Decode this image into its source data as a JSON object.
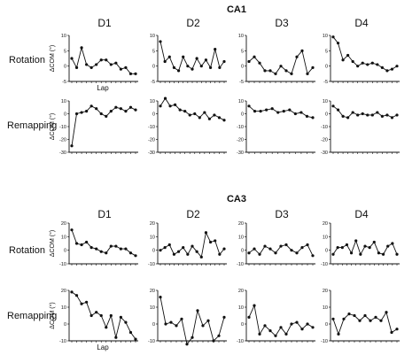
{
  "chart_data": {
    "type": "line",
    "days": [
      "D1",
      "D2",
      "D3",
      "D4"
    ],
    "row_labels": [
      "Rotation",
      "Remapping"
    ],
    "ylabel": "ΔCOM (°)",
    "xlabel": "Lap",
    "sections": [
      {
        "title": "CA1",
        "rows": [
          {
            "label": "Rotation",
            "ylim": [
              -5,
              10
            ],
            "yticks": [
              "10",
              "5",
              "0",
              "-5"
            ],
            "series": [
              {
                "day": "D1",
                "y": [
                  2.5,
                  -0.5,
                  6,
                  0.5,
                  -0.5,
                  0.5,
                  2,
                  2,
                  0.5,
                  1,
                  -1,
                  -0.5,
                  -2.5,
                  -2.5
                ]
              },
              {
                "day": "D2",
                "y": [
                  8,
                  1.5,
                  3,
                  -0.5,
                  -1.5,
                  3,
                  0,
                  -1,
                  2.5,
                  0,
                  2,
                  -0.5,
                  5.5,
                  -0.5,
                  1.5
                ]
              },
              {
                "day": "D3",
                "y": [
                  1.5,
                  3,
                  1,
                  -1.5,
                  -1.5,
                  -2.5,
                  0,
                  -1.5,
                  -2.5,
                  3,
                  5,
                  -2.5,
                  -0.5
                ]
              },
              {
                "day": "D4",
                "y": [
                  9.5,
                  7.5,
                  2,
                  3.5,
                  1.5,
                  0,
                  1,
                  0.5,
                  1,
                  0.5,
                  -0.5,
                  -1.5,
                  -1,
                  0
                ]
              }
            ]
          },
          {
            "label": "Remapping",
            "ylim": [
              -30,
              10
            ],
            "yticks": [
              "10",
              "0",
              "-10",
              "-20",
              "-30"
            ],
            "series": [
              {
                "day": "D1",
                "y": [
                  -25,
                  0,
                  1,
                  2,
                  6,
                  4,
                  0,
                  -2,
                  2,
                  5,
                  4,
                  2,
                  5,
                  3
                ]
              },
              {
                "day": "D2",
                "y": [
                  6,
                  12,
                  6,
                  7,
                  3,
                  2,
                  -1,
                  0,
                  -3,
                  1,
                  -4,
                  -1,
                  -3,
                  -5
                ]
              },
              {
                "day": "D3",
                "y": [
                  6,
                  2,
                  2,
                  3,
                  4,
                  1,
                  2,
                  3,
                  0,
                  1,
                  -2,
                  -3
                ]
              },
              {
                "day": "D4",
                "y": [
                  6,
                  3,
                  -2,
                  -3,
                  1,
                  -1,
                  0,
                  -1,
                  -1,
                  1,
                  -2,
                  -1,
                  -3,
                  -1
                ]
              }
            ]
          }
        ]
      },
      {
        "title": "CA3",
        "rows": [
          {
            "label": "Rotation",
            "ylim": [
              -10,
              20
            ],
            "yticks": [
              "20",
              "10",
              "0",
              "-10"
            ],
            "series": [
              {
                "day": "D1",
                "y": [
                  15,
                  5,
                  4,
                  6,
                  2,
                  1,
                  -1,
                  -2,
                  3,
                  3,
                  1,
                  1,
                  -2,
                  -4
                ]
              },
              {
                "day": "D2",
                "y": [
                  0,
                  2,
                  4,
                  -3,
                  -1,
                  2,
                  -3,
                  3,
                  -1,
                  -5,
                  13,
                  6,
                  7,
                  -3,
                  1
                ]
              },
              {
                "day": "D3",
                "y": [
                  -2,
                  1,
                  -3,
                  3,
                  1,
                  -2,
                  3,
                  4,
                  0,
                  -2,
                  2,
                  4,
                  -4
                ]
              },
              {
                "day": "D4",
                "y": [
                  -3,
                  2,
                  2,
                  4,
                  -2,
                  7,
                  -3,
                  3,
                  2,
                  6,
                  -2,
                  -3,
                  3,
                  5,
                  -3
                ]
              }
            ]
          },
          {
            "label": "Remapping",
            "ylim": [
              -10,
              20
            ],
            "yticks": [
              "20",
              "10",
              "0",
              "-10"
            ],
            "series": [
              {
                "day": "D1",
                "y": [
                  19,
                  17,
                  12,
                  13,
                  5,
                  7,
                  5,
                  -2,
                  5,
                  -8,
                  4,
                  1,
                  -5,
                  -9
                ]
              },
              {
                "day": "D2",
                "y": [
                  16,
                  0,
                  1,
                  -1,
                  3,
                  -12,
                  -8,
                  8,
                  -1,
                  2,
                  -10,
                  -7,
                  4
                ]
              },
              {
                "day": "D3",
                "y": [
                  4,
                  11,
                  -6,
                  -1,
                  -4,
                  -7,
                  -2,
                  -6,
                  0,
                  1,
                  -3,
                  0,
                  -2
                ]
              },
              {
                "day": "D4",
                "y": [
                  3,
                  -6,
                  3,
                  6,
                  5,
                  2,
                  5,
                  2,
                  4,
                  2,
                  7,
                  -5,
                  -3
                ]
              }
            ]
          }
        ]
      }
    ]
  }
}
